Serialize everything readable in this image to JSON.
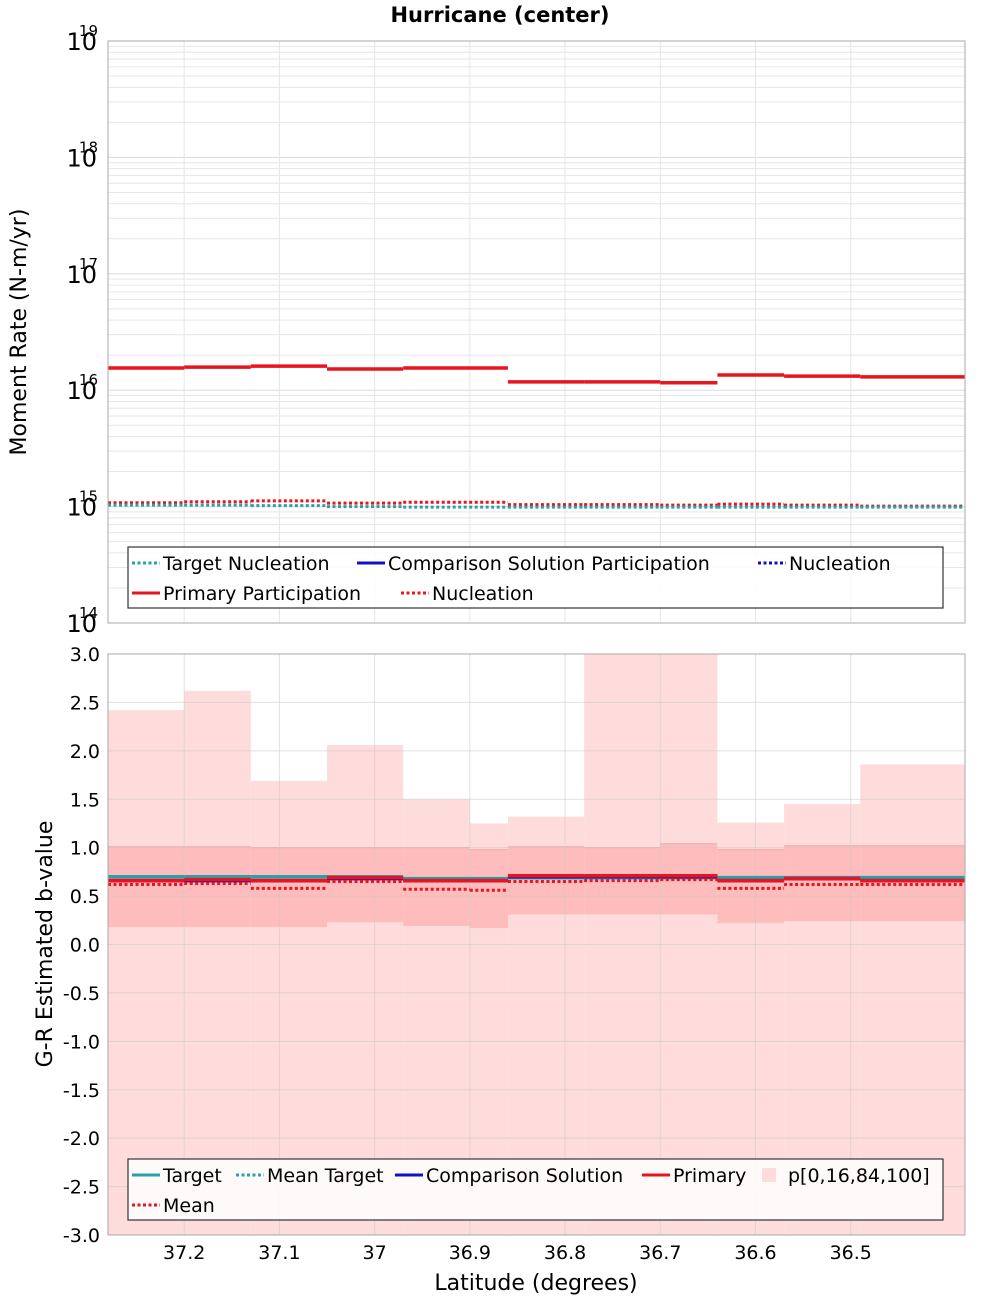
{
  "title": "Hurricane (center)",
  "xlabel": "Latitude (degrees)",
  "x_ticks": [
    "37.2",
    "37.1",
    "37",
    "36.9",
    "36.8",
    "36.7",
    "36.6",
    "36.5"
  ],
  "colors": {
    "target": "#2aa0a8",
    "comparison": "#1010c8",
    "primary": "#e8141e",
    "band_outer": "#ffdcdc",
    "band_inner": "#ffbcbc",
    "grid": "#e6e6e6"
  },
  "chart_data": [
    {
      "type": "line",
      "title": "Hurricane (center)",
      "ylabel": "Moment Rate (N-m/yr)",
      "yscale": "log",
      "ylim": [
        100000000000000.0,
        1e+19
      ],
      "y_ticks": [
        {
          "base": "10",
          "exp": "19",
          "value": 1e+19
        },
        {
          "base": "10",
          "exp": "18",
          "value": 1e+18
        },
        {
          "base": "10",
          "exp": "17",
          "value": 1e+17
        },
        {
          "base": "10",
          "exp": "16",
          "value": 1e+16
        },
        {
          "base": "10",
          "exp": "15",
          "value": 1000000000000000.0
        },
        {
          "base": "10",
          "exp": "14",
          "value": 100000000000000.0
        }
      ],
      "xlim": [
        37.28,
        36.38
      ],
      "x_reversed": true,
      "bins": [
        [
          37.28,
          37.2
        ],
        [
          37.2,
          37.13
        ],
        [
          37.13,
          37.05
        ],
        [
          37.05,
          36.97
        ],
        [
          36.97,
          36.86
        ],
        [
          36.86,
          36.78
        ],
        [
          36.78,
          36.7
        ],
        [
          36.7,
          36.64
        ],
        [
          36.64,
          36.57
        ],
        [
          36.57,
          36.49
        ],
        [
          36.49,
          36.38
        ]
      ],
      "series": [
        {
          "name": "Primary Participation",
          "style": "solid",
          "color_key": "primary",
          "values": [
            1.55e+16,
            1.58e+16,
            1.61e+16,
            1.52e+16,
            1.55e+16,
            1.18e+16,
            1.18e+16,
            1.16e+16,
            1.35e+16,
            1.32e+16,
            1.3e+16
          ]
        },
        {
          "name": "Nucleation",
          "style": "dotted",
          "color_key": "primary",
          "values": [
            1080000000000000.0,
            1100000000000000.0,
            1120000000000000.0,
            1070000000000000.0,
            1090000000000000.0,
            1040000000000000.0,
            1040000000000000.0,
            1030000000000000.0,
            1050000000000000.0,
            1030000000000000.0,
            1010000000000000.0
          ]
        },
        {
          "name": "Target Nucleation",
          "style": "dotted",
          "color_key": "target",
          "values": [
            1030000000000000.0,
            1030000000000000.0,
            1020000000000000.0,
            1000000000000000.0,
            990000000000000.0,
            990000000000000.0,
            990000000000000.0,
            990000000000000.0,
            990000000000000.0,
            990000000000000.0,
            990000000000000.0
          ]
        }
      ],
      "legend": {
        "position": "bottom",
        "rows": [
          [
            {
              "label": "Target Nucleation",
              "style": "dotted",
              "color_key": "target"
            },
            {
              "label": "Comparison Solution Participation",
              "style": "solid",
              "color_key": "comparison"
            },
            {
              "label": "Nucleation",
              "style": "dotted",
              "color_key": "comparison"
            }
          ],
          [
            {
              "label": "Primary Participation",
              "style": "solid",
              "color_key": "primary"
            },
            {
              "label": "Nucleation",
              "style": "dotted",
              "color_key": "primary"
            }
          ]
        ]
      }
    },
    {
      "type": "line",
      "ylabel": "G-R Estimated b-value",
      "ylim": [
        -3.0,
        3.0
      ],
      "y_ticks": [
        "3.0",
        "2.5",
        "2.0",
        "1.5",
        "1.0",
        "0.5",
        "0.0",
        "-0.5",
        "-1.0",
        "-1.5",
        "-2.0",
        "-2.5",
        "-3.0"
      ],
      "xlim": [
        37.28,
        36.38
      ],
      "x_reversed": true,
      "bins": [
        [
          37.28,
          37.2
        ],
        [
          37.2,
          37.13
        ],
        [
          37.13,
          37.05
        ],
        [
          37.05,
          36.97
        ],
        [
          36.97,
          36.9
        ],
        [
          36.9,
          36.86
        ],
        [
          36.86,
          36.78
        ],
        [
          36.78,
          36.7
        ],
        [
          36.7,
          36.64
        ],
        [
          36.64,
          36.57
        ],
        [
          36.57,
          36.49
        ],
        [
          36.49,
          36.38
        ]
      ],
      "bands": {
        "name": "p[0,16,84,100]",
        "p0": [
          -3.0,
          -3.0,
          -3.0,
          -3.0,
          -3.0,
          -3.0,
          -3.0,
          -3.0,
          -3.0,
          -3.0,
          -3.0,
          -3.0
        ],
        "p16": [
          0.18,
          0.18,
          0.18,
          0.23,
          0.19,
          0.17,
          0.31,
          0.31,
          0.31,
          0.22,
          0.24,
          0.24
        ],
        "p84": [
          1.01,
          1.01,
          1.0,
          1.0,
          1.0,
          0.98,
          1.01,
          1.0,
          1.04,
          0.98,
          1.02,
          1.02
        ],
        "p100": [
          2.42,
          2.62,
          1.69,
          2.06,
          1.5,
          1.25,
          1.32,
          3.0,
          3.0,
          1.26,
          1.45,
          1.86
        ]
      },
      "series": [
        {
          "name": "Target",
          "style": "solid",
          "color_key": "target",
          "values": [
            0.7,
            0.7,
            0.7,
            0.7,
            0.68,
            0.68,
            0.69,
            0.69,
            0.69,
            0.69,
            0.69,
            0.69
          ]
        },
        {
          "name": "Comparison Solution",
          "style": "solid",
          "color_key": "comparison",
          "values": [
            0.66,
            0.66,
            0.66,
            0.68,
            0.66,
            0.66,
            0.7,
            0.7,
            0.7,
            0.66,
            0.68,
            0.66
          ]
        },
        {
          "name": "Primary",
          "style": "solid",
          "color_key": "primary",
          "values": [
            0.66,
            0.67,
            0.66,
            0.69,
            0.66,
            0.66,
            0.71,
            0.71,
            0.71,
            0.66,
            0.68,
            0.66
          ]
        },
        {
          "name": "Mean",
          "style": "dotted",
          "color_key": "primary",
          "values": [
            0.62,
            0.63,
            0.58,
            0.65,
            0.57,
            0.56,
            0.65,
            0.66,
            0.67,
            0.58,
            0.62,
            0.62
          ]
        }
      ],
      "legend": {
        "position": "bottom",
        "rows": [
          [
            {
              "label": "Target",
              "style": "solid",
              "color_key": "target"
            },
            {
              "label": "Mean Target",
              "style": "dotted",
              "color_key": "target"
            },
            {
              "label": "Comparison Solution",
              "style": "solid",
              "color_key": "comparison"
            },
            {
              "label": "Primary",
              "style": "solid",
              "color_key": "primary"
            },
            {
              "label": "p[0,16,84,100]",
              "style": "box",
              "color_key": "band_outer"
            }
          ],
          [
            {
              "label": "Mean",
              "style": "dotted",
              "color_key": "primary"
            }
          ]
        ]
      }
    }
  ]
}
